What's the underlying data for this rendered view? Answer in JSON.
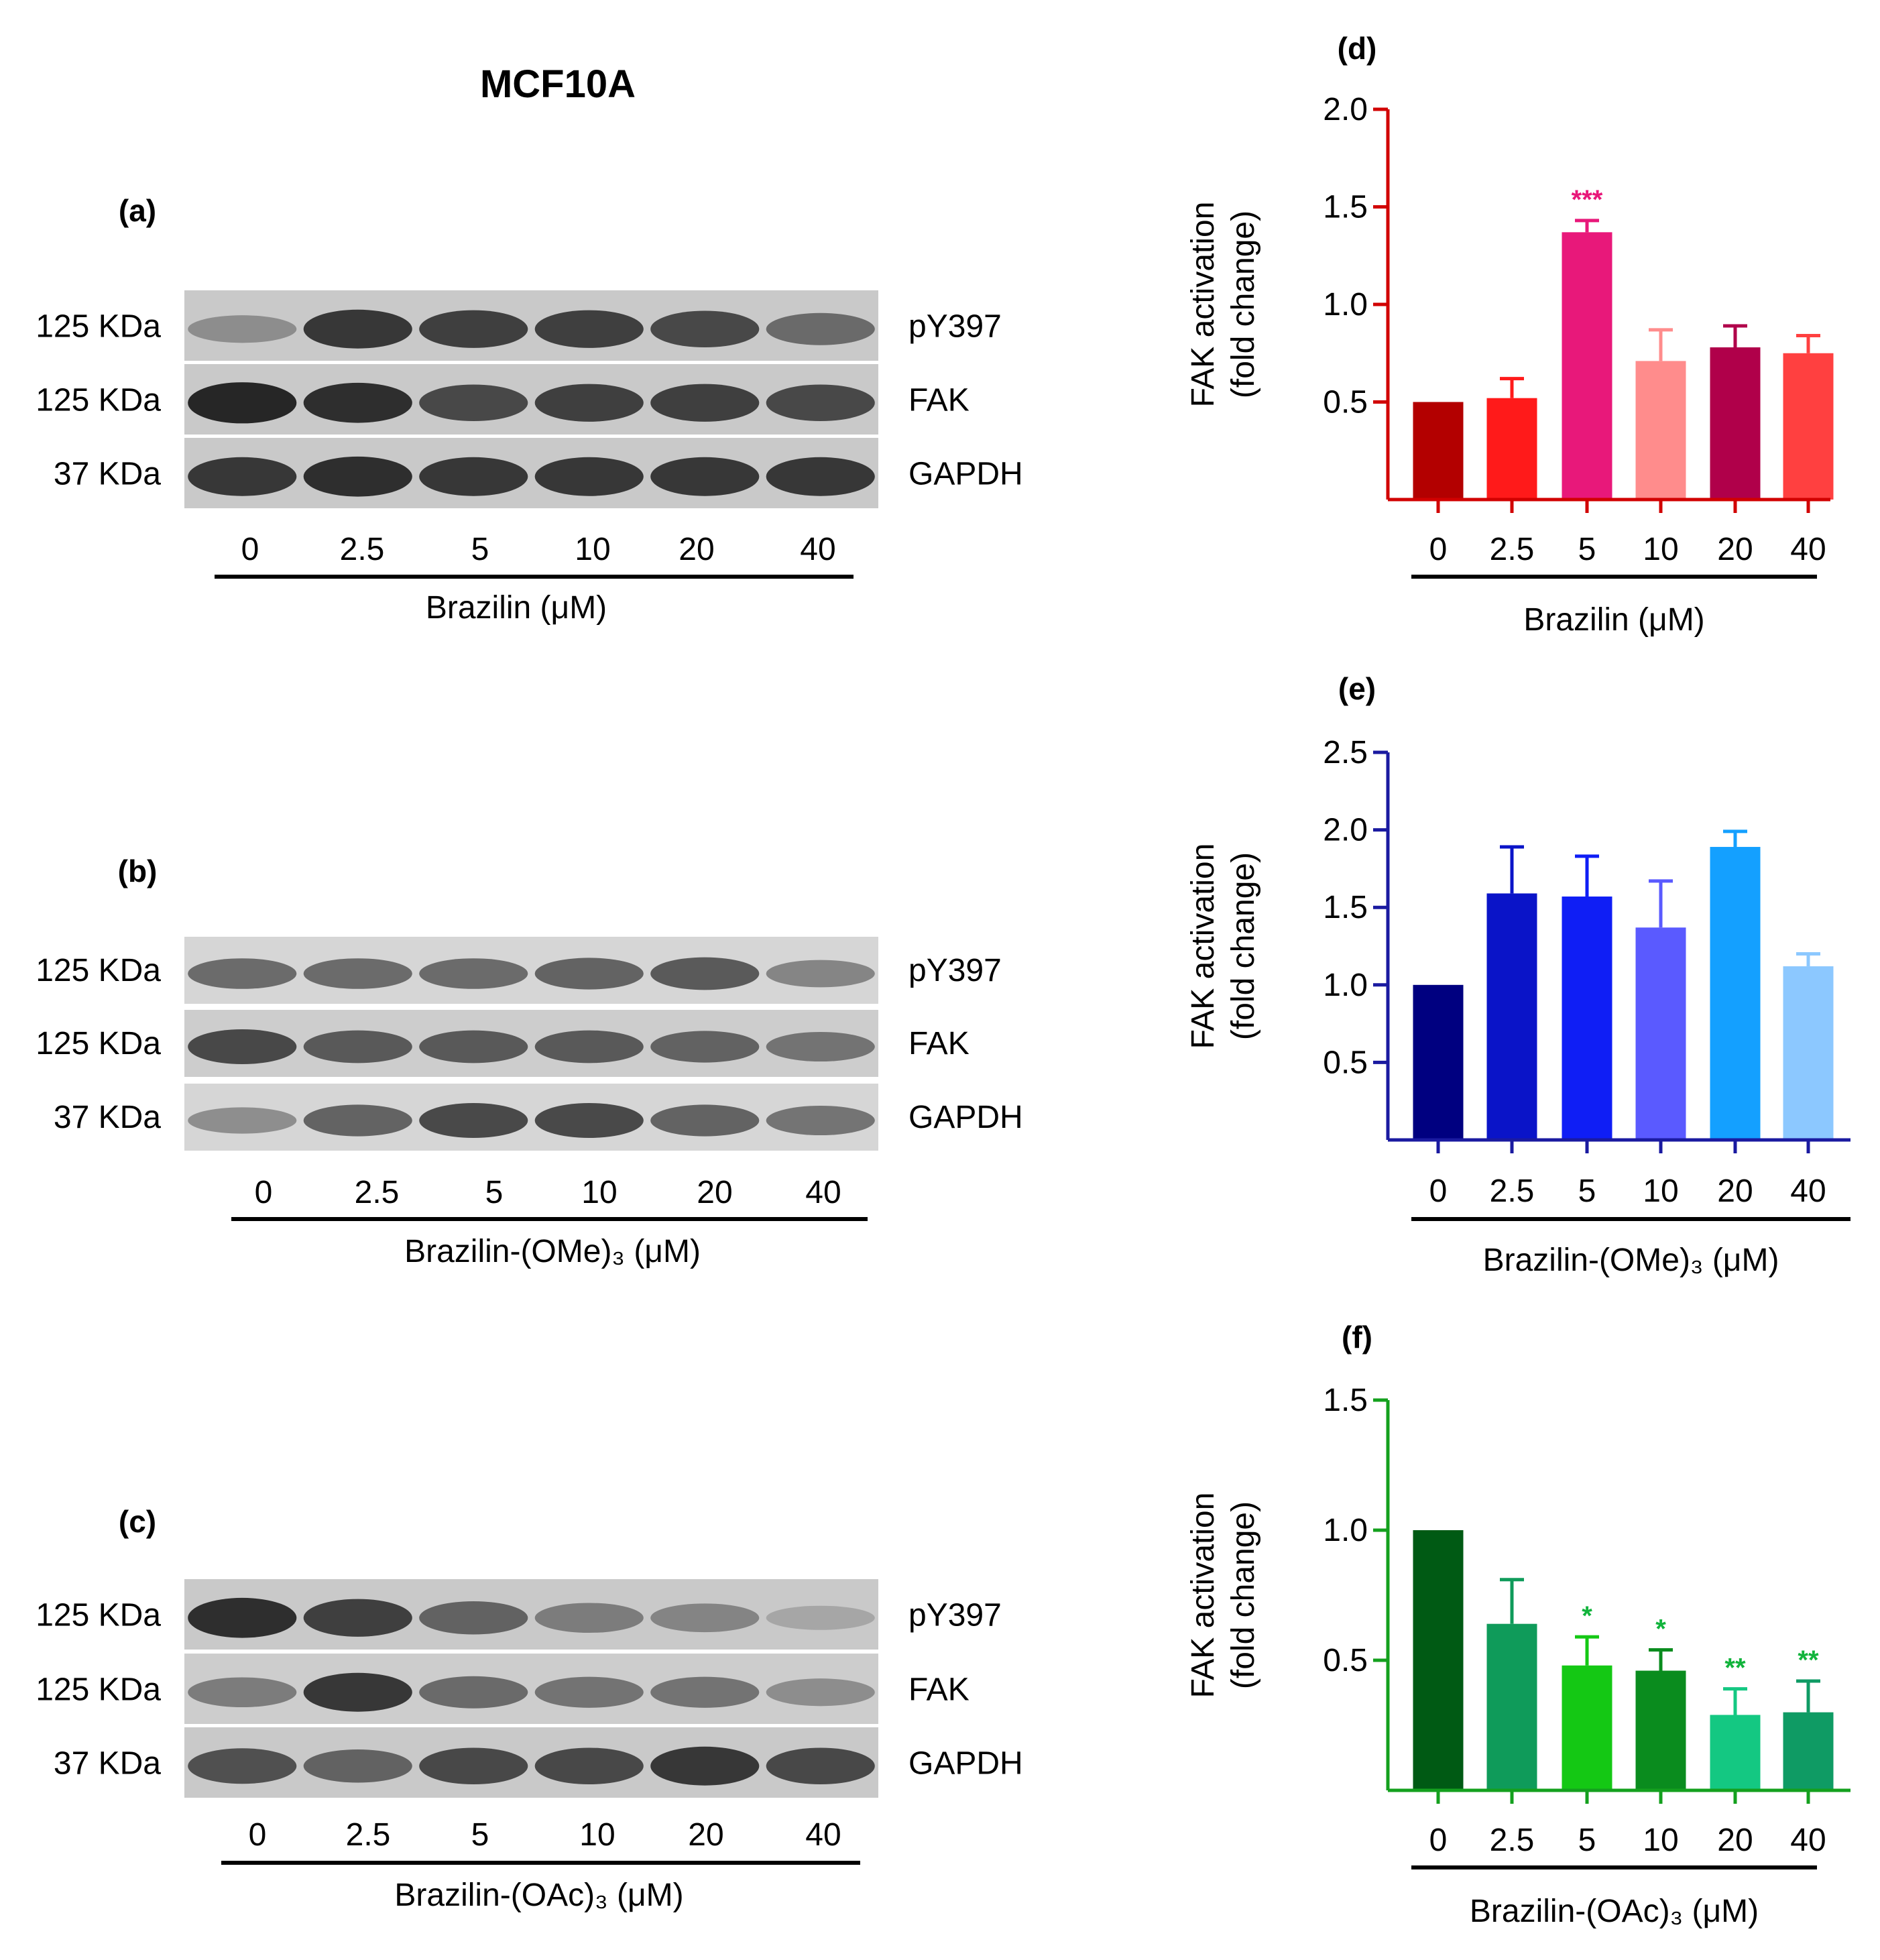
{
  "figure_title": "MCF10A",
  "blots": [
    {
      "label": "(a)",
      "rows": [
        {
          "mw": "125 KDa",
          "protein": "pY397",
          "intensity": [
            0.35,
            0.85,
            0.8,
            0.8,
            0.75,
            0.55
          ],
          "bg": "#c9c9c9"
        },
        {
          "mw": "125 KDa",
          "protein": "FAK",
          "intensity": [
            0.95,
            0.9,
            0.75,
            0.8,
            0.8,
            0.75
          ],
          "bg": "#c9c9c9"
        },
        {
          "mw": "37 KDa",
          "protein": "GAPDH",
          "intensity": [
            0.85,
            0.9,
            0.85,
            0.85,
            0.85,
            0.85
          ],
          "bg": "#c9c9c9"
        }
      ],
      "lanes": [
        "0",
        "2.5",
        "5",
        "10",
        "20",
        "40"
      ],
      "treatment": "Brazilin (μM)"
    },
    {
      "label": "(b)",
      "rows": [
        {
          "mw": "125 KDa",
          "protein": "pY397",
          "intensity": [
            0.55,
            0.55,
            0.55,
            0.6,
            0.65,
            0.4
          ],
          "bg": "#d6d6d6"
        },
        {
          "mw": "125 KDa",
          "protein": "FAK",
          "intensity": [
            0.75,
            0.65,
            0.65,
            0.65,
            0.6,
            0.5
          ],
          "bg": "#cdcdcd"
        },
        {
          "mw": "37 KDa",
          "protein": "GAPDH",
          "intensity": [
            0.35,
            0.6,
            0.75,
            0.75,
            0.6,
            0.5
          ],
          "bg": "#d6d6d6"
        }
      ],
      "lanes": [
        "0",
        "2.5",
        "5",
        "10",
        "20",
        "40"
      ],
      "treatment": "Brazilin-(OMe)₃ (μM)"
    },
    {
      "label": "(c)",
      "rows": [
        {
          "mw": "125 KDa",
          "protein": "pY397",
          "intensity": [
            0.9,
            0.8,
            0.6,
            0.45,
            0.4,
            0.2
          ],
          "bg": "#c9c9c9"
        },
        {
          "mw": "125 KDa",
          "protein": "FAK",
          "intensity": [
            0.45,
            0.85,
            0.55,
            0.5,
            0.5,
            0.35
          ],
          "bg": "#cdcdcd"
        },
        {
          "mw": "37 KDa",
          "protein": "GAPDH",
          "intensity": [
            0.7,
            0.6,
            0.75,
            0.75,
            0.85,
            0.75
          ],
          "bg": "#c9c9c9"
        }
      ],
      "lanes": [
        "0",
        "2.5",
        "5",
        "10",
        "20",
        "40"
      ],
      "treatment": "Brazilin-(OAc)₃ (μM)"
    }
  ],
  "chart_data": [
    {
      "panel": "(d)",
      "type": "bar",
      "categories": [
        "0",
        "2.5",
        "5",
        "10",
        "20",
        "40"
      ],
      "values": [
        0.5,
        0.52,
        1.37,
        0.71,
        0.78,
        0.75
      ],
      "errors": [
        0.0,
        0.1,
        0.06,
        0.16,
        0.11,
        0.09
      ],
      "significance": [
        "",
        "",
        "***",
        "",
        "",
        ""
      ],
      "significance_color": "#e8187a",
      "colors": [
        "#b30000",
        "#ff1a1a",
        "#e8187a",
        "#ff8c8c",
        "#b0004a",
        "#ff4040"
      ],
      "axis_color": "#d10000",
      "ylabel": "FAK activation",
      "ylabel2": "(fold change)",
      "xlabel": "Brazilin (μM)",
      "ylim": [
        0,
        2.0
      ],
      "yticks": [
        "0.5",
        "1.0",
        "1.5",
        "2.0"
      ]
    },
    {
      "panel": "(e)",
      "type": "bar",
      "categories": [
        "0",
        "2.5",
        "5",
        "10",
        "20",
        "40"
      ],
      "values": [
        1.0,
        1.59,
        1.57,
        1.37,
        1.89,
        1.12
      ],
      "errors": [
        0.0,
        0.3,
        0.26,
        0.3,
        0.1,
        0.08
      ],
      "significance": [
        "",
        "",
        "",
        "",
        "",
        ""
      ],
      "significance_color": "#1a1acc",
      "colors": [
        "#000080",
        "#0a14c8",
        "#0f1ef5",
        "#5a5aff",
        "#14a0ff",
        "#8cc8ff"
      ],
      "axis_color": "#1a1aa0",
      "ylabel": "FAK activation",
      "ylabel2": "(fold change)",
      "xlabel": "Brazilin-(OMe)₃ (μM)",
      "ylim": [
        0,
        2.5
      ],
      "yticks": [
        "0.5",
        "1.0",
        "1.5",
        "2.0",
        "2.5"
      ]
    },
    {
      "panel": "(f)",
      "type": "bar",
      "categories": [
        "0",
        "2.5",
        "5",
        "10",
        "20",
        "40"
      ],
      "values": [
        1.0,
        0.64,
        0.48,
        0.46,
        0.29,
        0.3
      ],
      "errors": [
        0.0,
        0.17,
        0.11,
        0.08,
        0.1,
        0.12
      ],
      "significance": [
        "",
        "",
        "*",
        "*",
        "**",
        "**"
      ],
      "significance_color": "#12b43c",
      "colors": [
        "#005a14",
        "#0f9b5a",
        "#14c814",
        "#0a8c1e",
        "#14c882",
        "#0f9b64"
      ],
      "axis_color": "#14a01e",
      "ylabel": "FAK activation",
      "ylabel2": "(fold change)",
      "xlabel": "Brazilin-(OAc)₃ (μM)",
      "ylim": [
        0,
        1.5
      ],
      "yticks": [
        "0.5",
        "1.0",
        "1.5"
      ]
    }
  ]
}
